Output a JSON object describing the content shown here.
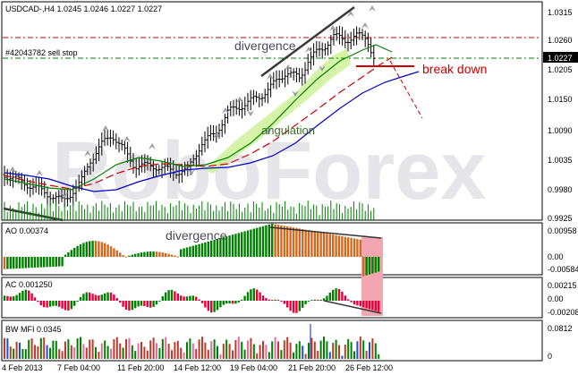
{
  "header": {
    "title": "USDCAD-,H4  1.0245 1.0246 1.0227 1.0227",
    "order_label": "#42043782 sell stop"
  },
  "watermark": "RoboForex",
  "main_chart": {
    "price_ticks": [
      "1.0315",
      "1.0260",
      "1.0227",
      "1.0205",
      "1.0150",
      "1.0090",
      "1.0035",
      "0.9980",
      "0.9925"
    ],
    "current_price": "1.0227",
    "annotations": {
      "divergence": "divergence",
      "angulation": "angulation",
      "break_down": "break down"
    }
  },
  "ao_panel": {
    "label": "AO 0.00374",
    "ticks": [
      "0.00958",
      "0.00",
      "-0.00584"
    ],
    "annotation": "divergence"
  },
  "ac_panel": {
    "label": "AC 0.001250",
    "ticks": [
      "0.00215",
      "0.00",
      "-0.00208"
    ]
  },
  "mfi_panel": {
    "label": "BW MFI 0.0345",
    "ticks": [
      "0.0812",
      "0"
    ]
  },
  "time_axis": {
    "labels": [
      "4 Feb 2013",
      "7 Feb 04:00",
      "11 Feb 20:00",
      "14 Feb 12:00",
      "19 Feb 04:00",
      "21 Feb 20:00",
      "26 Feb 12:00"
    ]
  },
  "colors": {
    "bull": "#008000",
    "bear": "#d2691e",
    "ac_red": "#e8003c",
    "jaw": "#0000cc",
    "teeth": "#cc0000",
    "lips": "#008000",
    "zone": "#f4a6b0",
    "highlight": "#c8f08c"
  }
}
